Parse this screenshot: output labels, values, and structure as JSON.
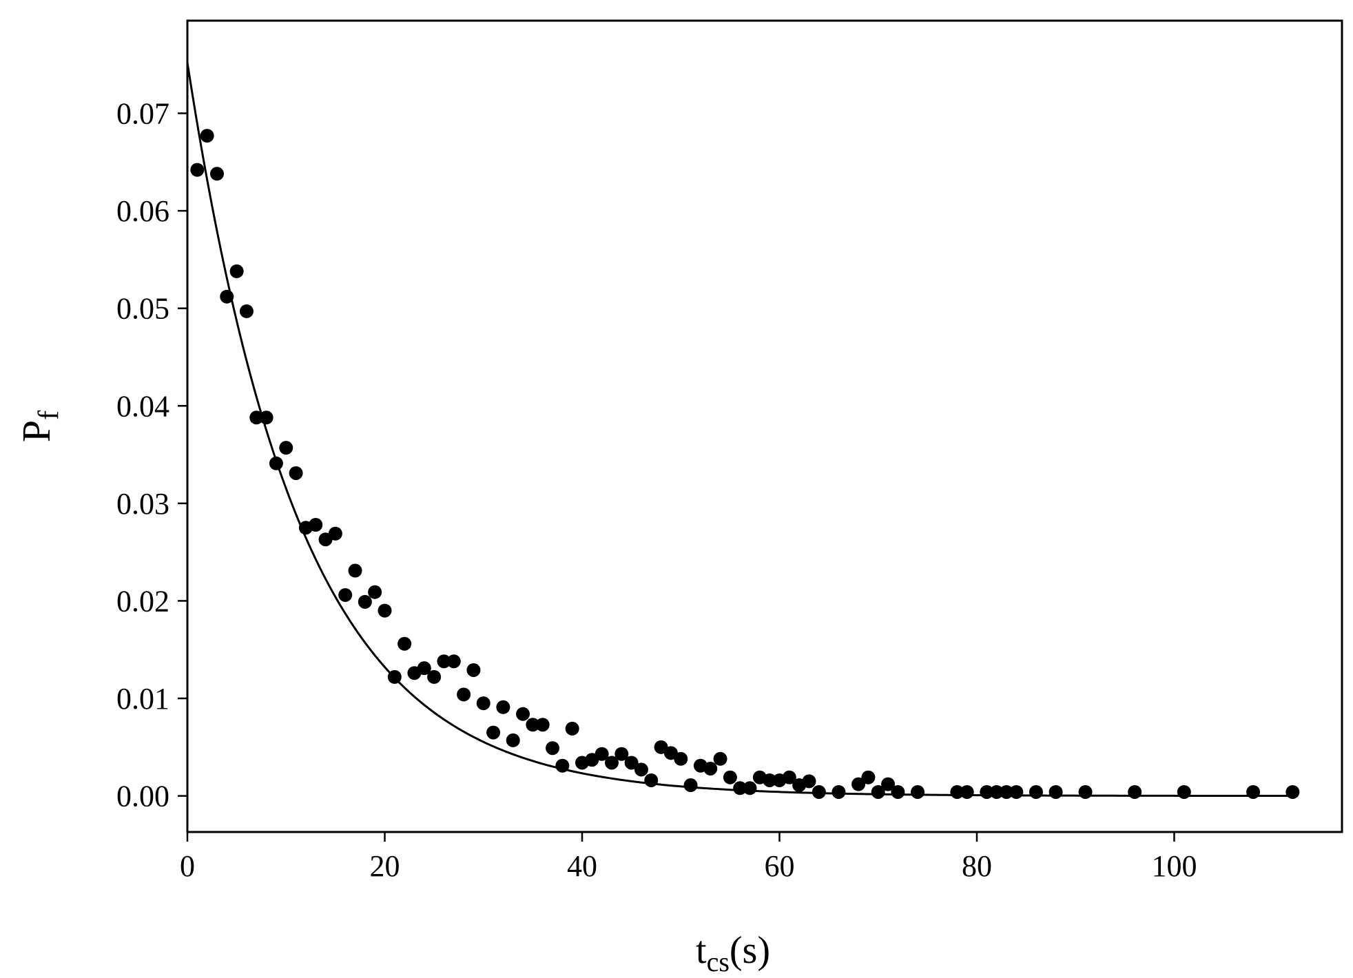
{
  "chart_data": {
    "type": "scatter",
    "title": "",
    "xlabel_main": "t",
    "xlabel_sub": "cs",
    "xlabel_suffix": "(s)",
    "ylabel_main": "P",
    "ylabel_sub": "f",
    "xlim": [
      0,
      117
    ],
    "ylim": [
      -0.0037,
      0.0795
    ],
    "xticks": [
      0,
      20,
      40,
      60,
      80,
      100
    ],
    "xtick_labels": [
      "0",
      "20",
      "40",
      "60",
      "80",
      "100"
    ],
    "yticks": [
      0.0,
      0.01,
      0.02,
      0.03,
      0.04,
      0.05,
      0.06,
      0.07
    ],
    "ytick_labels": [
      "0.00",
      "0.01",
      "0.02",
      "0.03",
      "0.04",
      "0.05",
      "0.06",
      "0.07"
    ],
    "grid": false,
    "marker_color": "#000000",
    "line_color": "#000000",
    "series": [
      {
        "type": "scatter",
        "points": [
          [
            1,
            0.0642
          ],
          [
            2,
            0.0677
          ],
          [
            3,
            0.0638
          ],
          [
            4,
            0.0512
          ],
          [
            5,
            0.0538
          ],
          [
            6,
            0.0497
          ],
          [
            7,
            0.0388
          ],
          [
            8,
            0.0388
          ],
          [
            9,
            0.0341
          ],
          [
            10,
            0.0357
          ],
          [
            11,
            0.0331
          ],
          [
            12,
            0.0275
          ],
          [
            13,
            0.0278
          ],
          [
            14,
            0.0263
          ],
          [
            15,
            0.0269
          ],
          [
            16,
            0.0206
          ],
          [
            17,
            0.0231
          ],
          [
            18,
            0.0199
          ],
          [
            19,
            0.0209
          ],
          [
            20,
            0.019
          ],
          [
            21,
            0.0122
          ],
          [
            22,
            0.0156
          ],
          [
            23,
            0.0126
          ],
          [
            24,
            0.0131
          ],
          [
            25,
            0.0122
          ],
          [
            26,
            0.0138
          ],
          [
            27,
            0.0138
          ],
          [
            28,
            0.0104
          ],
          [
            29,
            0.0129
          ],
          [
            30,
            0.0095
          ],
          [
            31,
            0.0065
          ],
          [
            32,
            0.0091
          ],
          [
            33,
            0.0057
          ],
          [
            34,
            0.0084
          ],
          [
            35,
            0.0073
          ],
          [
            36,
            0.0073
          ],
          [
            37,
            0.0049
          ],
          [
            38,
            0.0031
          ],
          [
            39,
            0.0069
          ],
          [
            40,
            0.0034
          ],
          [
            41,
            0.0037
          ],
          [
            42,
            0.0043
          ],
          [
            43,
            0.0034
          ],
          [
            44,
            0.0043
          ],
          [
            45,
            0.0034
          ],
          [
            46,
            0.0027
          ],
          [
            47,
            0.0016
          ],
          [
            48,
            0.005
          ],
          [
            49,
            0.0044
          ],
          [
            50,
            0.0038
          ],
          [
            51,
            0.0011
          ],
          [
            52,
            0.0031
          ],
          [
            53,
            0.0028
          ],
          [
            54,
            0.0038
          ],
          [
            55,
            0.0019
          ],
          [
            56,
            0.0008
          ],
          [
            57,
            0.0008
          ],
          [
            58,
            0.0019
          ],
          [
            59,
            0.0016
          ],
          [
            60,
            0.0016
          ],
          [
            61,
            0.0019
          ],
          [
            62,
            0.0011
          ],
          [
            63,
            0.0015
          ],
          [
            64,
            0.0004
          ],
          [
            66,
            0.0004
          ],
          [
            68,
            0.0012
          ],
          [
            69,
            0.0019
          ],
          [
            70,
            0.0004
          ],
          [
            71,
            0.0012
          ],
          [
            72,
            0.0004
          ],
          [
            74,
            0.0004
          ],
          [
            78,
            0.0004
          ],
          [
            79,
            0.0004
          ],
          [
            81,
            0.0004
          ],
          [
            82,
            0.0004
          ],
          [
            83,
            0.0004
          ],
          [
            84,
            0.0004
          ],
          [
            86,
            0.0004
          ],
          [
            88,
            0.0004
          ],
          [
            91,
            0.0004
          ],
          [
            96,
            0.0004
          ],
          [
            101,
            0.0004
          ],
          [
            108,
            0.0004
          ],
          [
            112,
            0.0004
          ]
        ]
      },
      {
        "type": "line",
        "fit": {
          "form": "exponential",
          "a": 0.0752,
          "tau": 11.5,
          "x_start": 0,
          "x_end": 112
        }
      }
    ]
  }
}
